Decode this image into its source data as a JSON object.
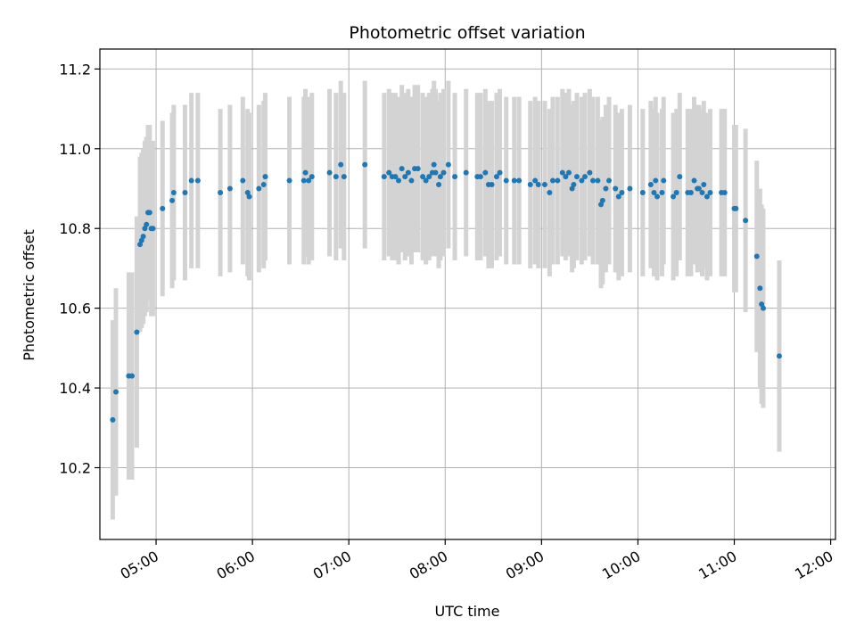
{
  "chart_data": {
    "type": "scatter",
    "title": "Photometric offset variation",
    "xlabel": "UTC time",
    "ylabel": "Photometric offset",
    "x_is_time": true,
    "xlim": [
      "04:25",
      "12:03"
    ],
    "ylim": [
      10.02,
      11.25
    ],
    "x_ticks": [
      "05:00",
      "06:00",
      "07:00",
      "08:00",
      "09:00",
      "10:00",
      "11:00",
      "12:00"
    ],
    "y_ticks": [
      10.2,
      10.4,
      10.6,
      10.8,
      11.0,
      11.2
    ],
    "grid": true,
    "colors": {
      "points": "#1f77b4",
      "errorbars": "#d3d3d3",
      "grid": "#b0b0b0"
    },
    "series": [
      {
        "points": [
          [
            "04:33",
            10.32,
            0.25
          ],
          [
            "04:35",
            10.39,
            0.26
          ],
          [
            "04:43",
            10.43,
            0.26
          ],
          [
            "04:45",
            10.43,
            0.26
          ],
          [
            "04:48",
            10.54,
            0.29
          ],
          [
            "04:50",
            10.76,
            0.22
          ],
          [
            "04:51",
            10.77,
            0.22
          ],
          [
            "04:52",
            10.78,
            0.22
          ],
          [
            "04:53",
            10.8,
            0.22
          ],
          [
            "04:54",
            10.81,
            0.22
          ],
          [
            "04:55",
            10.84,
            0.22
          ],
          [
            "04:56",
            10.84,
            0.22
          ],
          [
            "04:57",
            10.8,
            0.22
          ],
          [
            "04:58",
            10.8,
            0.22
          ],
          [
            "05:04",
            10.85,
            0.22
          ],
          [
            "05:10",
            10.87,
            0.22
          ],
          [
            "05:11",
            10.89,
            0.22
          ],
          [
            "05:18",
            10.89,
            0.22
          ],
          [
            "05:22",
            10.92,
            0.22
          ],
          [
            "05:26",
            10.92,
            0.22
          ],
          [
            "05:40",
            10.89,
            0.21
          ],
          [
            "05:46",
            10.9,
            0.21
          ],
          [
            "05:54",
            10.92,
            0.21
          ],
          [
            "05:57",
            10.89,
            0.21
          ],
          [
            "05:58",
            10.88,
            0.21
          ],
          [
            "06:04",
            10.9,
            0.21
          ],
          [
            "06:07",
            10.91,
            0.21
          ],
          [
            "06:08",
            10.93,
            0.21
          ],
          [
            "06:23",
            10.92,
            0.21
          ],
          [
            "06:32",
            10.92,
            0.21
          ],
          [
            "06:33",
            10.94,
            0.21
          ],
          [
            "06:35",
            10.92,
            0.21
          ],
          [
            "06:37",
            10.93,
            0.21
          ],
          [
            "06:48",
            10.94,
            0.21
          ],
          [
            "06:52",
            10.93,
            0.21
          ],
          [
            "06:55",
            10.96,
            0.21
          ],
          [
            "06:57",
            10.93,
            0.21
          ],
          [
            "07:10",
            10.96,
            0.21
          ],
          [
            "07:22",
            10.93,
            0.21
          ],
          [
            "07:25",
            10.94,
            0.21
          ],
          [
            "07:27",
            10.93,
            0.21
          ],
          [
            "07:29",
            10.93,
            0.21
          ],
          [
            "07:31",
            10.92,
            0.21
          ],
          [
            "07:33",
            10.95,
            0.21
          ],
          [
            "07:35",
            10.93,
            0.21
          ],
          [
            "07:37",
            10.94,
            0.21
          ],
          [
            "07:39",
            10.92,
            0.21
          ],
          [
            "07:41",
            10.95,
            0.21
          ],
          [
            "07:43",
            10.95,
            0.21
          ],
          [
            "07:46",
            10.93,
            0.21
          ],
          [
            "07:48",
            10.92,
            0.21
          ],
          [
            "07:50",
            10.93,
            0.21
          ],
          [
            "07:52",
            10.94,
            0.21
          ],
          [
            "07:53",
            10.96,
            0.21
          ],
          [
            "07:54",
            10.94,
            0.21
          ],
          [
            "07:56",
            10.91,
            0.21
          ],
          [
            "07:57",
            10.93,
            0.21
          ],
          [
            "07:59",
            10.94,
            0.21
          ],
          [
            "08:02",
            10.96,
            0.21
          ],
          [
            "08:06",
            10.93,
            0.21
          ],
          [
            "08:13",
            10.94,
            0.21
          ],
          [
            "08:20",
            10.93,
            0.21
          ],
          [
            "08:22",
            10.93,
            0.21
          ],
          [
            "08:25",
            10.94,
            0.21
          ],
          [
            "08:27",
            10.91,
            0.21
          ],
          [
            "08:29",
            10.91,
            0.21
          ],
          [
            "08:32",
            10.93,
            0.21
          ],
          [
            "08:34",
            10.94,
            0.21
          ],
          [
            "08:38",
            10.92,
            0.21
          ],
          [
            "08:43",
            10.92,
            0.21
          ],
          [
            "08:46",
            10.92,
            0.21
          ],
          [
            "08:53",
            10.91,
            0.21
          ],
          [
            "08:56",
            10.92,
            0.21
          ],
          [
            "08:58",
            10.91,
            0.21
          ],
          [
            "09:02",
            10.91,
            0.21
          ],
          [
            "09:05",
            10.89,
            0.21
          ],
          [
            "09:07",
            10.92,
            0.21
          ],
          [
            "09:10",
            10.92,
            0.21
          ],
          [
            "09:13",
            10.94,
            0.21
          ],
          [
            "09:15",
            10.93,
            0.21
          ],
          [
            "09:17",
            10.94,
            0.21
          ],
          [
            "09:19",
            10.9,
            0.21
          ],
          [
            "09:20",
            10.91,
            0.21
          ],
          [
            "09:22",
            10.93,
            0.21
          ],
          [
            "09:25",
            10.92,
            0.21
          ],
          [
            "09:27",
            10.93,
            0.21
          ],
          [
            "09:30",
            10.94,
            0.21
          ],
          [
            "09:32",
            10.92,
            0.21
          ],
          [
            "09:35",
            10.92,
            0.21
          ],
          [
            "09:37",
            10.86,
            0.21
          ],
          [
            "09:38",
            10.87,
            0.21
          ],
          [
            "09:40",
            10.9,
            0.21
          ],
          [
            "09:42",
            10.92,
            0.21
          ],
          [
            "09:46",
            10.9,
            0.21
          ],
          [
            "09:48",
            10.88,
            0.21
          ],
          [
            "09:50",
            10.89,
            0.21
          ],
          [
            "09:55",
            10.9,
            0.21
          ],
          [
            "10:03",
            10.89,
            0.21
          ],
          [
            "10:08",
            10.91,
            0.21
          ],
          [
            "10:10",
            10.89,
            0.21
          ],
          [
            "10:11",
            10.92,
            0.21
          ],
          [
            "10:12",
            10.88,
            0.21
          ],
          [
            "10:15",
            10.89,
            0.21
          ],
          [
            "10:16",
            10.92,
            0.21
          ],
          [
            "10:22",
            10.88,
            0.21
          ],
          [
            "10:24",
            10.89,
            0.21
          ],
          [
            "10:26",
            10.93,
            0.21
          ],
          [
            "10:31",
            10.89,
            0.21
          ],
          [
            "10:33",
            10.89,
            0.21
          ],
          [
            "10:35",
            10.92,
            0.21
          ],
          [
            "10:37",
            10.9,
            0.21
          ],
          [
            "10:38",
            10.9,
            0.21
          ],
          [
            "10:40",
            10.89,
            0.21
          ],
          [
            "10:41",
            10.91,
            0.21
          ],
          [
            "10:43",
            10.88,
            0.21
          ],
          [
            "10:45",
            10.89,
            0.21
          ],
          [
            "10:52",
            10.89,
            0.21
          ],
          [
            "10:54",
            10.89,
            0.21
          ],
          [
            "11:00",
            10.85,
            0.21
          ],
          [
            "11:01",
            10.85,
            0.21
          ],
          [
            "11:07",
            10.82,
            0.23
          ],
          [
            "11:14",
            10.73,
            0.24
          ],
          [
            "11:16",
            10.65,
            0.25
          ],
          [
            "11:17",
            10.61,
            0.25
          ],
          [
            "11:18",
            10.6,
            0.25
          ],
          [
            "11:28",
            10.48,
            0.24
          ]
        ]
      }
    ]
  }
}
